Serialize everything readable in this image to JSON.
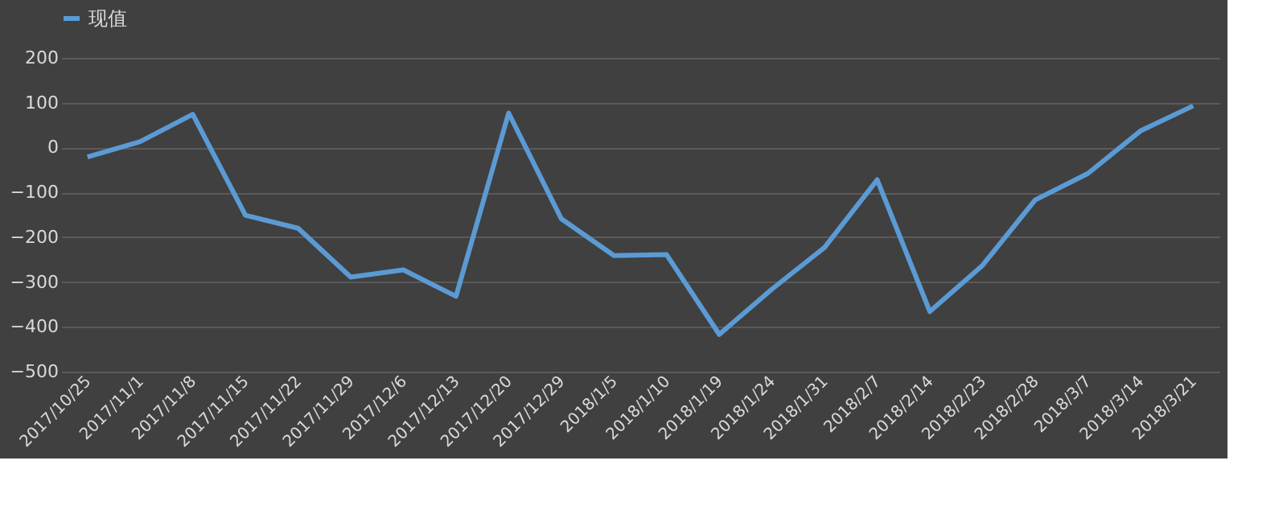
{
  "chart_data": {
    "type": "line",
    "categories": [
      "2017/10/25",
      "2017/11/1",
      "2017/11/8",
      "2017/11/15",
      "2017/11/22",
      "2017/11/29",
      "2017/12/6",
      "2017/12/13",
      "2017/12/20",
      "2017/12/29",
      "2018/1/5",
      "2018/1/10",
      "2018/1/19",
      "2018/1/24",
      "2018/1/31",
      "2018/2/7",
      "2018/2/14",
      "2018/2/23",
      "2018/2/28",
      "2018/3/7",
      "2018/3/14",
      "2018/3/21"
    ],
    "series": [
      {
        "name": "现值",
        "color": "#5b9bd5",
        "values": [
          -21,
          13,
          74,
          -151,
          -180,
          -289,
          -273,
          -332,
          77,
          -159,
          -241,
          -239,
          -417,
          -316,
          -223,
          -72,
          -366,
          -263,
          -117,
          -58,
          37,
          93
        ]
      }
    ],
    "ylim": [
      -500,
      200
    ],
    "yticks": [
      -500,
      -400,
      -300,
      -200,
      -100,
      0,
      100,
      200
    ],
    "grid": "y",
    "legend": "top",
    "marker": "none",
    "line_style": "solid"
  }
}
